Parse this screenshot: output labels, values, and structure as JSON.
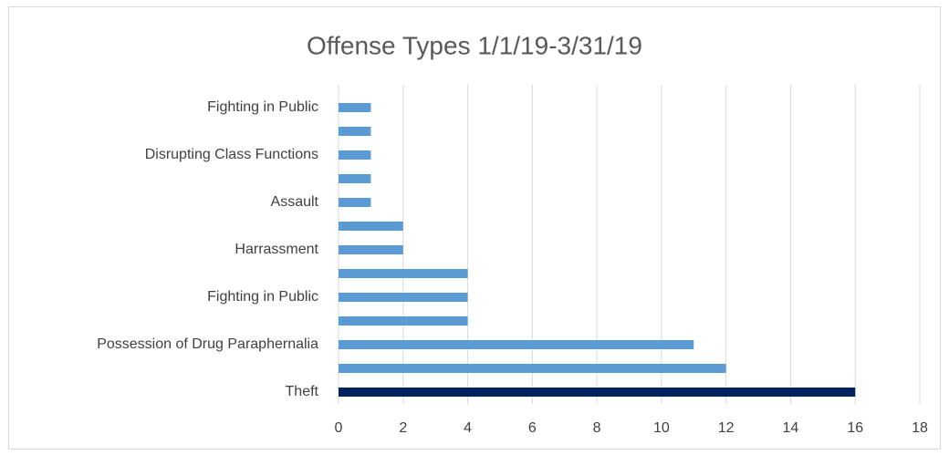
{
  "chart_data": {
    "type": "barh",
    "title": "Offense Types 1/1/19-3/31/19",
    "categories": [
      "Fighting in Public",
      null,
      "Disrupting Class Functions",
      null,
      "Assault",
      null,
      "Harrassment",
      null,
      "Fighting in Public",
      null,
      "Possession of Drug Paraphernalia",
      null,
      "Theft"
    ],
    "values": [
      1,
      1,
      1,
      1,
      1,
      2,
      2,
      4,
      4,
      4,
      11,
      12,
      16
    ],
    "colors": [
      "#5b9bd5",
      "#5b9bd5",
      "#5b9bd5",
      "#5b9bd5",
      "#5b9bd5",
      "#5b9bd5",
      "#5b9bd5",
      "#5b9bd5",
      "#5b9bd5",
      "#5b9bd5",
      "#5b9bd5",
      "#5b9bd5",
      "#002060"
    ],
    "xlim": [
      0,
      18
    ],
    "xticks": [
      0,
      2,
      4,
      6,
      8,
      10,
      12,
      14,
      16,
      18
    ],
    "grid": true
  }
}
